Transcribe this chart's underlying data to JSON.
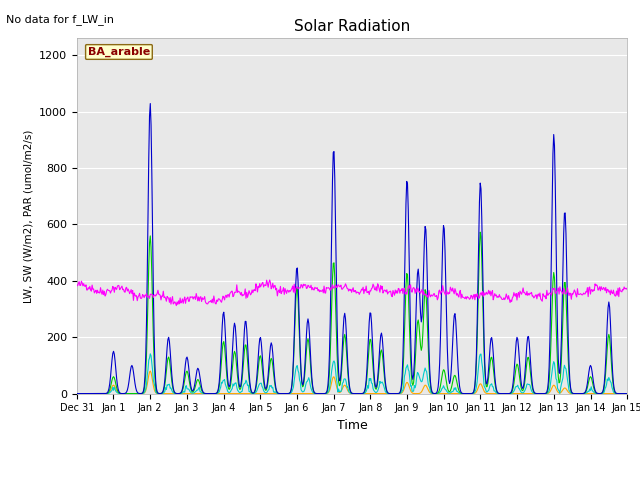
{
  "title": "Solar Radiation",
  "xlabel": "Time",
  "ylabel": "LW, SW (W/m2), PAR (umol/m2/s)",
  "note": "No data for f_LW_in",
  "annotation": "BA_arable",
  "ylim": [
    0,
    1260
  ],
  "yticks": [
    0,
    200,
    400,
    600,
    800,
    1000,
    1200
  ],
  "background_color": "#e8e8e8",
  "colors": {
    "LW_out": "#ff00ff",
    "PAR_in": "#0000cc",
    "PAR_out": "#00cccc",
    "SW_in": "#00cc00",
    "SW_out": "#ffaa00"
  },
  "figsize": [
    6.4,
    4.8
  ],
  "dpi": 100
}
